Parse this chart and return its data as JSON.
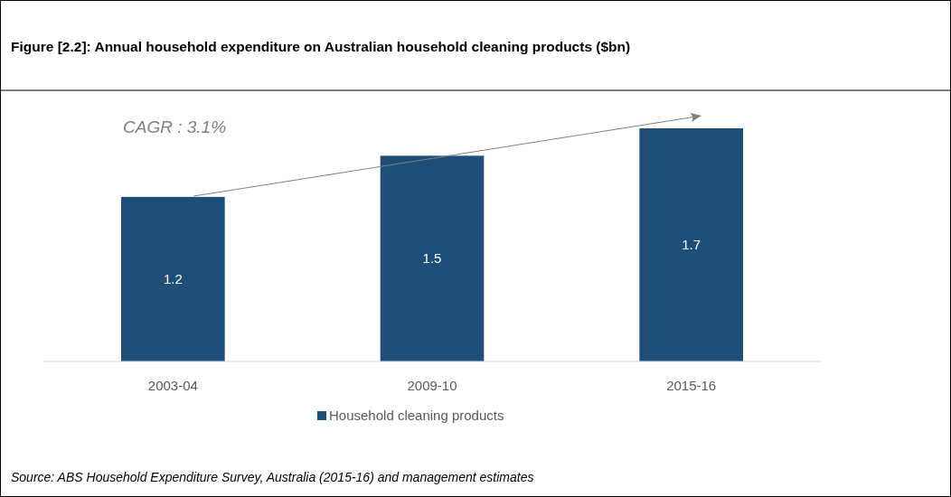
{
  "chart_data": {
    "type": "bar",
    "title": "Figure [2.2]: Annual household expenditure on Australian household cleaning products ($bn)",
    "categories": [
      "2003-04",
      "2009-10",
      "2015-16"
    ],
    "series": [
      {
        "name": "Household cleaning products",
        "color": "#1f4e79",
        "values": [
          1.2,
          1.5,
          1.7
        ]
      }
    ],
    "data_labels": true,
    "legend": "bottom",
    "annotations": [
      "CAGR : 3.1%",
      "Source: ABS Household Expenditure Survey, Australia (2015-16) and management estimates"
    ]
  }
}
